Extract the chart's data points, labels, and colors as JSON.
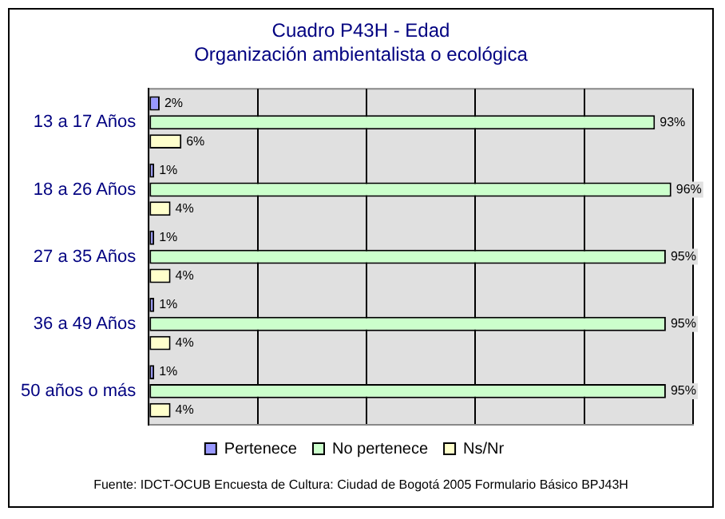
{
  "chart_data": {
    "type": "bar",
    "orientation": "horizontal",
    "title": "Cuadro P43H - Edad",
    "subtitle": "Organización ambientalista o ecológica",
    "categories": [
      "13 a 17 Años",
      "18 a 26 Años",
      "27 a 35 Años",
      "36 a 49 Años",
      "50 años o más"
    ],
    "series": [
      {
        "name": "Pertenece",
        "color": "#9999ff",
        "values": [
          2,
          1,
          1,
          1,
          1
        ],
        "value_labels": [
          "2%",
          "1%",
          "1%",
          "1%",
          "1%"
        ]
      },
      {
        "name": "No pertenece",
        "color": "#ccffcc",
        "values": [
          93,
          96,
          95,
          95,
          95
        ],
        "value_labels": [
          "93%",
          "96%",
          "95%",
          "95%",
          "95%"
        ]
      },
      {
        "name": "Ns/Nr",
        "color": "#ffffcc",
        "values": [
          6,
          4,
          4,
          4,
          4
        ],
        "value_labels": [
          "6%",
          "4%",
          "4%",
          "4%",
          "4%"
        ]
      }
    ],
    "xlim": [
      0,
      100
    ],
    "xticks": [
      {
        "value": 0,
        "label": null
      },
      {
        "value": 20,
        "label": null
      },
      {
        "value": 40,
        "label": null
      },
      {
        "value": 60,
        "label": null
      },
      {
        "value": 80,
        "label": null
      },
      {
        "value": 100,
        "label": null
      }
    ],
    "grid": "x",
    "legend": "bottom",
    "tick_labels": "y",
    "annotations": [
      "Fuente: IDCT-OCUB Encuesta de Cultura: Ciudad de Bogotá 2005 Formulario Básico BPJ43H"
    ]
  }
}
